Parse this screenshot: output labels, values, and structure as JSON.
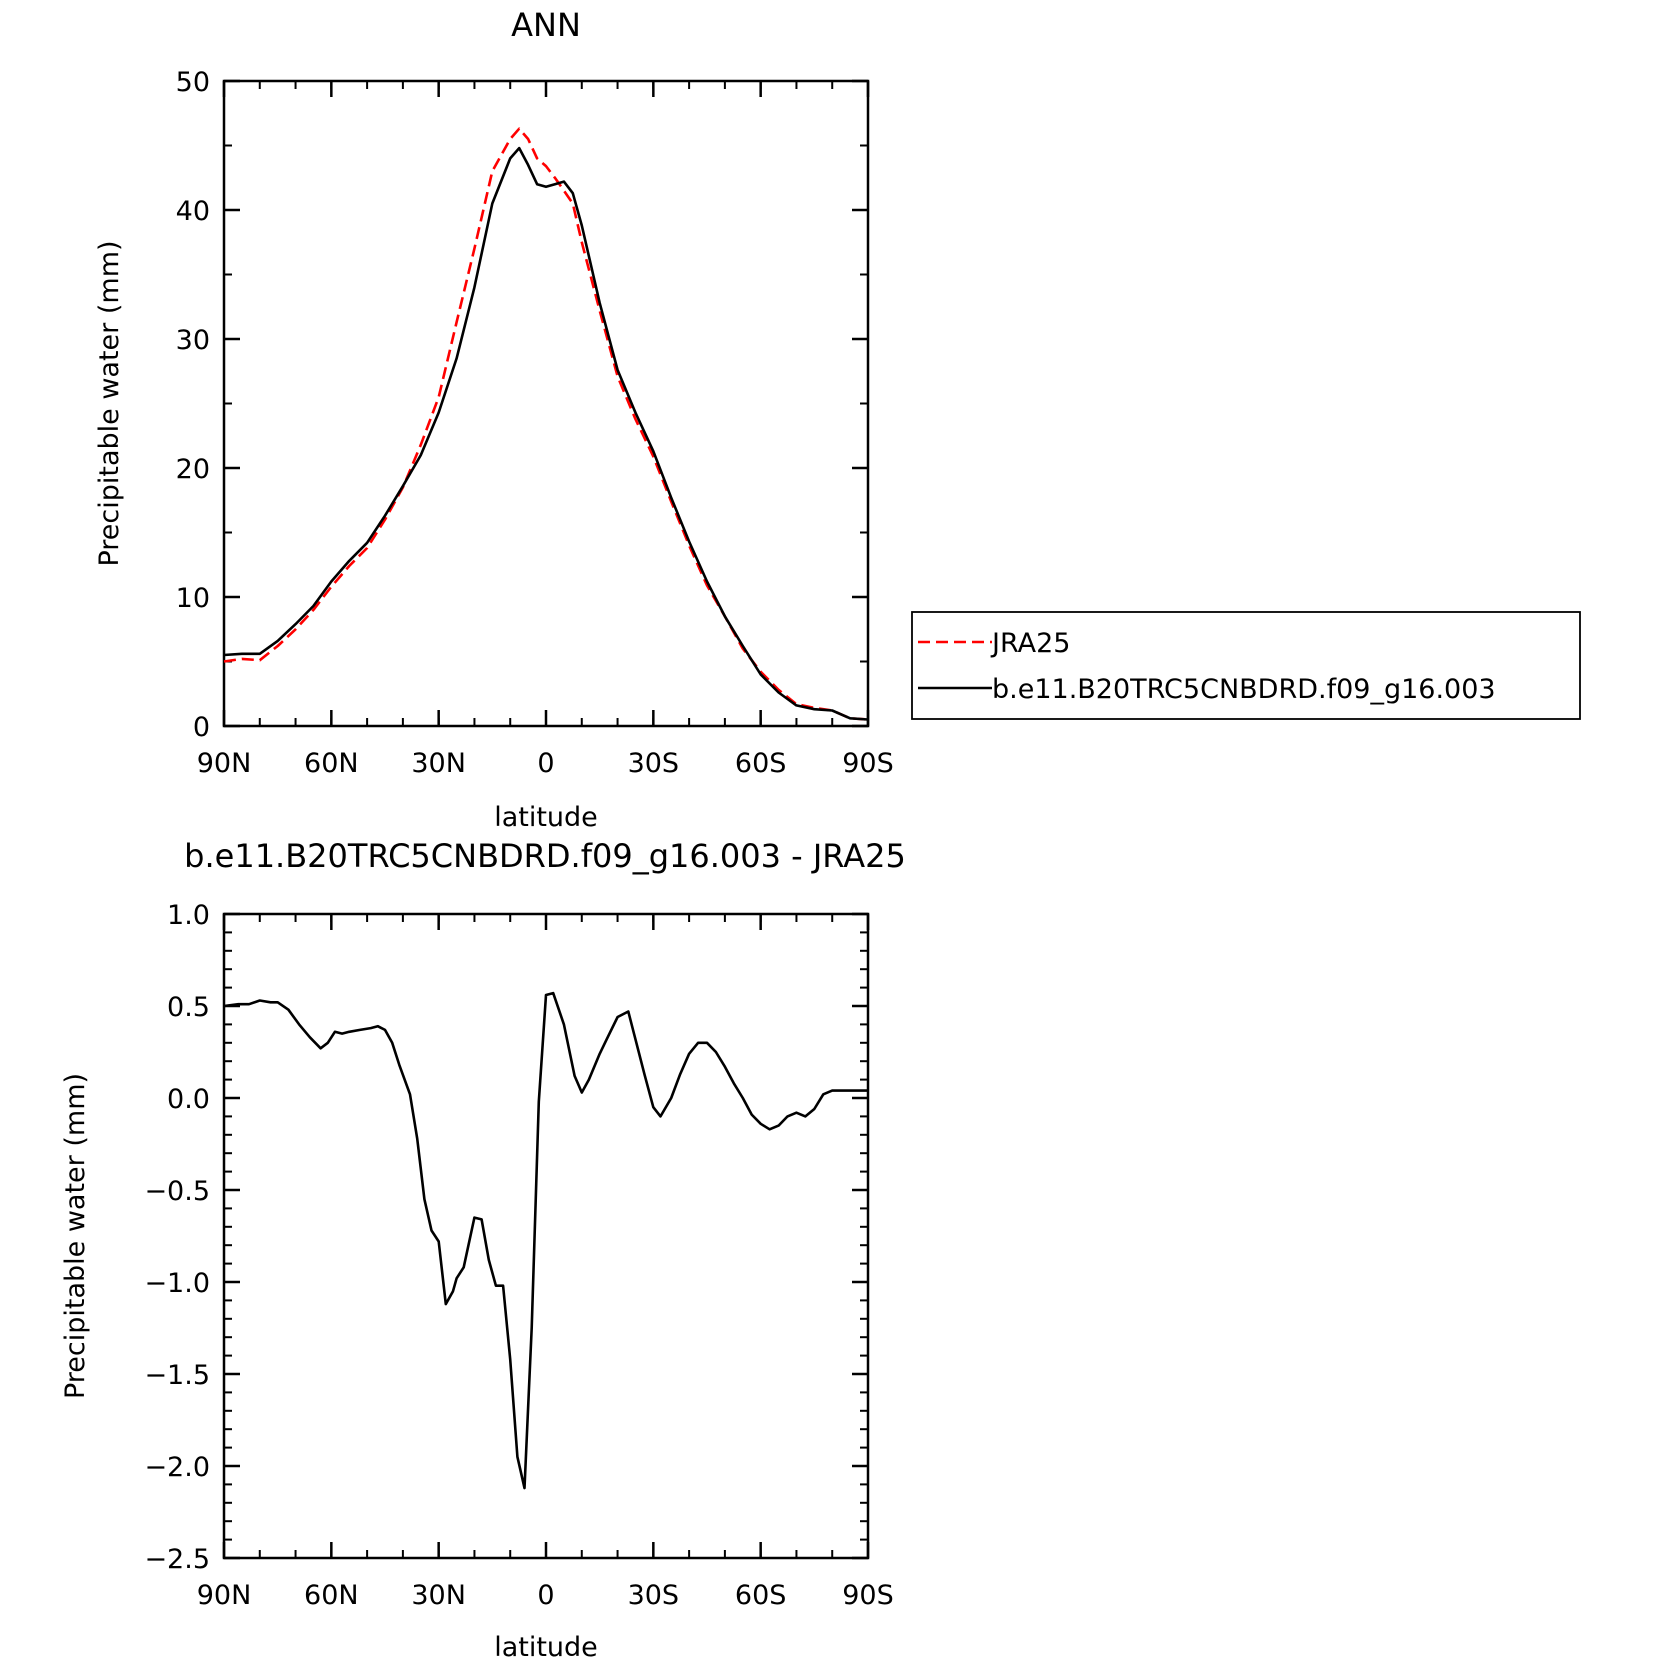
{
  "chart_data": [
    {
      "type": "line",
      "title": "ANN",
      "xlabel": "latitude",
      "ylabel": "Precipitable water (mm)",
      "xlim": [
        90,
        -90
      ],
      "ylim": [
        0,
        50
      ],
      "xticks": [
        {
          "value": 90,
          "label": "90N"
        },
        {
          "value": 60,
          "label": "60N"
        },
        {
          "value": 30,
          "label": "30N"
        },
        {
          "value": 0,
          "label": "0"
        },
        {
          "value": -30,
          "label": "30S"
        },
        {
          "value": -60,
          "label": "60S"
        },
        {
          "value": -90,
          "label": "90S"
        }
      ],
      "yticks": [
        {
          "value": 0,
          "label": "0"
        },
        {
          "value": 10,
          "label": "10"
        },
        {
          "value": 20,
          "label": "20"
        },
        {
          "value": 30,
          "label": "30"
        },
        {
          "value": 40,
          "label": "40"
        },
        {
          "value": 50,
          "label": "50"
        }
      ],
      "legend": {
        "placement": "right",
        "entries": [
          {
            "label": "JRA25",
            "color": "#ff0000",
            "dash": "dashed"
          },
          {
            "label": "b.e11.B20TRC5CNBDRD.f09_g16.003",
            "color": "#000000",
            "dash": "solid"
          }
        ]
      },
      "series": [
        {
          "name": "JRA25",
          "color": "#ff0000",
          "dash": "dashed",
          "x": [
            90,
            85,
            80,
            75,
            70,
            65,
            60,
            55,
            50,
            45,
            40,
            35,
            30,
            25,
            20,
            15,
            10,
            7.5,
            5,
            2.5,
            0,
            -2.5,
            -5,
            -7.5,
            -10,
            -15,
            -20,
            -25,
            -30,
            -35,
            -40,
            -45,
            -50,
            -55,
            -60,
            -65,
            -70,
            -75,
            -80,
            -85,
            -90
          ],
          "y": [
            5.0,
            5.2,
            5.1,
            6.2,
            7.5,
            9.0,
            10.8,
            12.4,
            13.8,
            16.0,
            18.5,
            21.8,
            25.5,
            31.3,
            37.0,
            43.0,
            45.5,
            46.3,
            45.5,
            44.0,
            43.4,
            42.5,
            41.5,
            40.5,
            37.5,
            32.2,
            27.1,
            23.8,
            20.9,
            17.4,
            14.0,
            10.9,
            8.5,
            6.0,
            4.2,
            2.8,
            1.7,
            1.4,
            1.2,
            0.6,
            0.5
          ]
        },
        {
          "name": "b.e11.B20TRC5CNBDRD.f09_g16.003",
          "color": "#000000",
          "dash": "solid",
          "x": [
            90,
            85,
            80,
            75,
            70,
            65,
            60,
            55,
            50,
            45,
            40,
            35,
            30,
            25,
            20,
            15,
            10,
            7.5,
            5,
            2.5,
            0,
            -2.5,
            -5,
            -7.5,
            -10,
            -15,
            -20,
            -25,
            -30,
            -35,
            -40,
            -45,
            -50,
            -55,
            -60,
            -65,
            -70,
            -75,
            -80,
            -85,
            -90
          ],
          "y": [
            5.5,
            5.6,
            5.6,
            6.6,
            7.9,
            9.3,
            11.2,
            12.8,
            14.2,
            16.3,
            18.6,
            21.0,
            24.3,
            28.5,
            34.0,
            40.5,
            44.0,
            44.8,
            43.5,
            42.0,
            41.8,
            42.0,
            42.2,
            41.3,
            38.8,
            32.8,
            27.6,
            24.3,
            21.3,
            17.7,
            14.3,
            11.2,
            8.5,
            6.2,
            4.0,
            2.6,
            1.6,
            1.3,
            1.2,
            0.6,
            0.5
          ]
        }
      ]
    },
    {
      "type": "line",
      "title": "b.e11.B20TRC5CNBDRD.f09_g16.003 - JRA25",
      "xlabel": "latitude",
      "ylabel": "Precipitable water (mm)",
      "xlim": [
        90,
        -90
      ],
      "ylim": [
        -2.5,
        1.0
      ],
      "xticks": [
        {
          "value": 90,
          "label": "90N"
        },
        {
          "value": 60,
          "label": "60N"
        },
        {
          "value": 30,
          "label": "30N"
        },
        {
          "value": 0,
          "label": "0"
        },
        {
          "value": -30,
          "label": "30S"
        },
        {
          "value": -60,
          "label": "60S"
        },
        {
          "value": -90,
          "label": "90S"
        }
      ],
      "yticks": [
        {
          "value": 1.0,
          "label": "1.0"
        },
        {
          "value": 0.5,
          "label": "0.5"
        },
        {
          "value": 0.0,
          "label": "0.0"
        },
        {
          "value": -0.5,
          "label": "−0.5"
        },
        {
          "value": -1.0,
          "label": "−1.0"
        },
        {
          "value": -1.5,
          "label": "−1.5"
        },
        {
          "value": -2.0,
          "label": "−2.0"
        },
        {
          "value": -2.5,
          "label": "−2.5"
        }
      ],
      "series": [
        {
          "color": "#000000",
          "dash": "solid",
          "x": [
            90,
            86,
            83,
            80,
            77,
            75,
            72,
            69,
            66,
            63,
            61,
            59,
            57,
            55,
            52,
            49,
            47,
            45,
            43,
            41,
            38,
            36,
            34,
            32,
            30,
            28,
            26,
            25,
            23,
            20,
            18,
            16,
            14,
            12,
            10,
            8,
            6,
            4,
            2,
            0,
            -2,
            -5,
            -8,
            -10,
            -12,
            -15,
            -17,
            -20,
            -23,
            -25,
            -27.5,
            -30,
            -32,
            -35,
            -37.5,
            -40,
            -42.5,
            -45,
            -47.5,
            -50,
            -52.5,
            -55,
            -57.5,
            -60,
            -62.5,
            -65,
            -67.5,
            -70,
            -72.5,
            -75,
            -77.5,
            -80,
            -82.5,
            -85,
            -87.5,
            -90
          ],
          "y": [
            0.5,
            0.51,
            0.51,
            0.53,
            0.52,
            0.52,
            0.48,
            0.4,
            0.33,
            0.27,
            0.3,
            0.36,
            0.35,
            0.36,
            0.37,
            0.38,
            0.39,
            0.37,
            0.3,
            0.18,
            0.02,
            -0.22,
            -0.55,
            -0.72,
            -0.78,
            -1.12,
            -1.05,
            -0.98,
            -0.92,
            -0.65,
            -0.66,
            -0.88,
            -1.02,
            -1.02,
            -1.42,
            -1.95,
            -2.12,
            -1.25,
            -0.02,
            0.56,
            0.57,
            0.4,
            0.12,
            0.03,
            0.1,
            0.24,
            0.32,
            0.44,
            0.47,
            0.32,
            0.13,
            -0.05,
            -0.1,
            0.0,
            0.13,
            0.24,
            0.3,
            0.3,
            0.25,
            0.17,
            0.08,
            0.0,
            -0.09,
            -0.14,
            -0.17,
            -0.15,
            -0.1,
            -0.08,
            -0.1,
            -0.06,
            0.02,
            0.04,
            0.04,
            0.04,
            0.04,
            0.04
          ]
        }
      ]
    }
  ]
}
